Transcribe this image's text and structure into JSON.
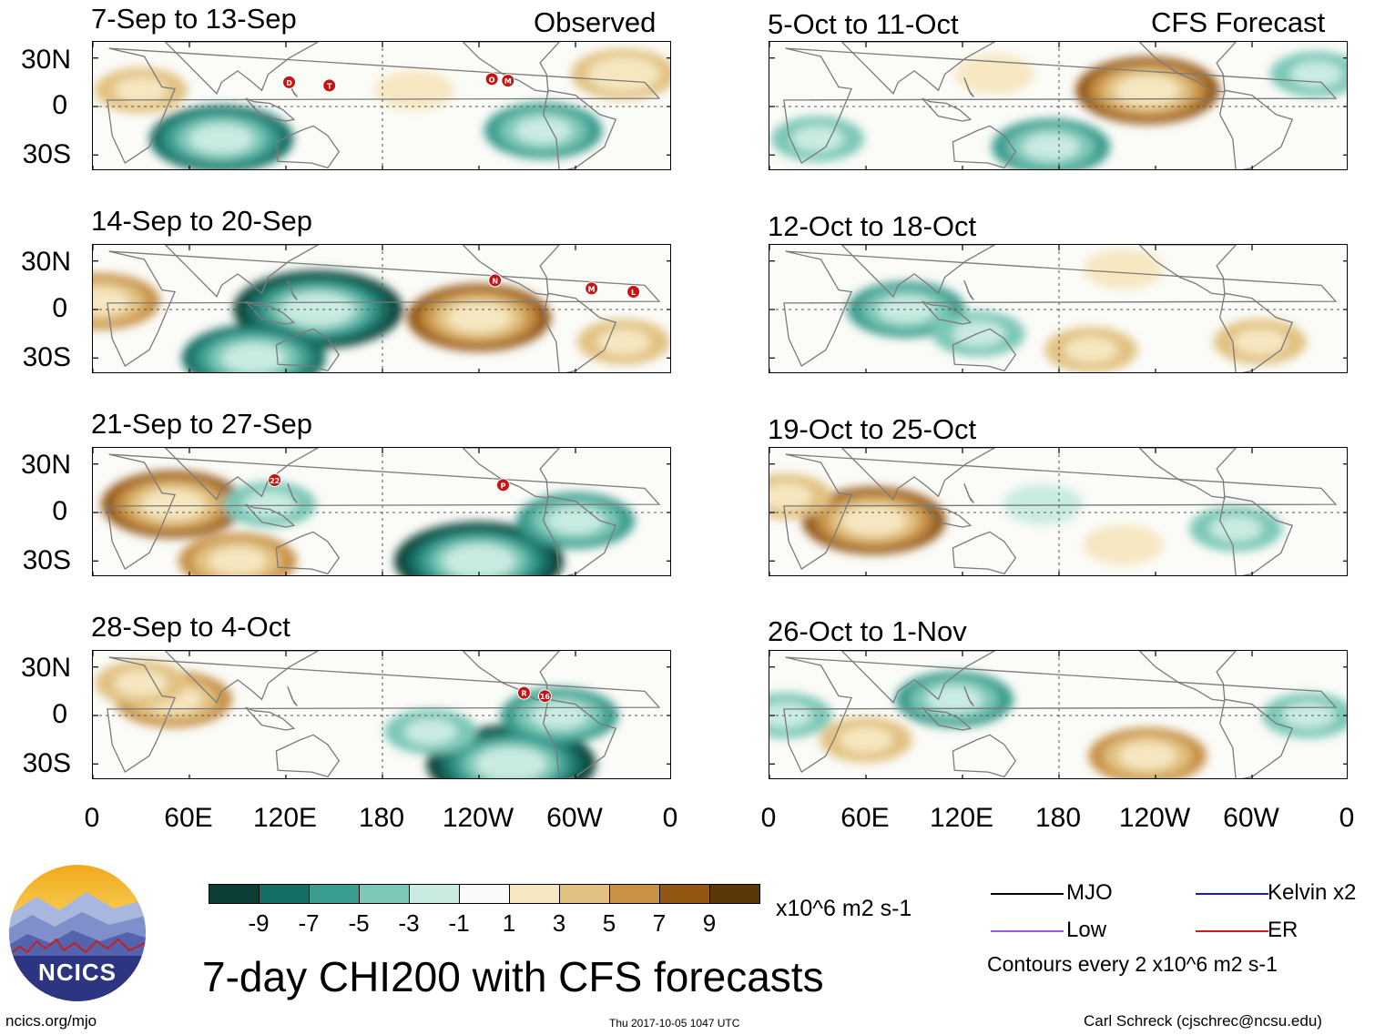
{
  "header": {
    "observed_label": "Observed",
    "forecast_label": "CFS Forecast"
  },
  "panels": [
    {
      "title": "7-Sep to 13-Sep",
      "column": "observed",
      "storms": [
        "D",
        "T",
        "O",
        "M"
      ]
    },
    {
      "title": "14-Sep to 20-Sep",
      "column": "observed",
      "storms": [
        "N",
        "M",
        "L"
      ]
    },
    {
      "title": "21-Sep to 27-Sep",
      "column": "observed",
      "storms": [
        "22",
        "P"
      ]
    },
    {
      "title": "28-Sep to 4-Oct",
      "column": "observed",
      "storms": [
        "R",
        "16"
      ]
    },
    {
      "title": "5-Oct to 11-Oct",
      "column": "forecast",
      "storms": []
    },
    {
      "title": "12-Oct to 18-Oct",
      "column": "forecast",
      "storms": []
    },
    {
      "title": "19-Oct to 25-Oct",
      "column": "forecast",
      "storms": []
    },
    {
      "title": "26-Oct to 1-Nov",
      "column": "forecast",
      "storms": []
    }
  ],
  "axes": {
    "lat_ticks": [
      "30N",
      "0",
      "30S"
    ],
    "lon_ticks": [
      "0",
      "60E",
      "120E",
      "180",
      "120W",
      "60W",
      "0"
    ]
  },
  "colorbar": {
    "colors": [
      "#0b3f36",
      "#136e63",
      "#3a9d8f",
      "#7cc8b8",
      "#c9ebe2",
      "#fafafa",
      "#f6e7c1",
      "#e2c282",
      "#c89246",
      "#935714",
      "#5b3709"
    ],
    "labels": [
      "-9",
      "-7",
      "-5",
      "-3",
      "-1",
      "1",
      "3",
      "5",
      "7",
      "9"
    ],
    "units": "x10^6 m2 s-1"
  },
  "legend": {
    "items": [
      {
        "label": "MJO",
        "color": "#000000"
      },
      {
        "label": "Kelvin x2",
        "color": "#1a1acc"
      },
      {
        "label": "Low",
        "color": "#9a5bd6"
      },
      {
        "label": "ER",
        "color": "#d11a1a"
      }
    ],
    "contours_note": "Contours every 2 x10^6 m2 s-1"
  },
  "logo": {
    "text": "NCICS"
  },
  "footer": {
    "main_title": "7-day CHI200 with CFS forecasts",
    "url": "ncics.org/mjo",
    "timestamp": "Thu 2017-10-05 1047 UTC",
    "credit": "Carl Schreck (cjschrec@ncsu.edu)"
  },
  "chart_data": {
    "type": "heatmap",
    "variable": "7-day CHI200 anomaly",
    "units": "x10^6 m2 s-1",
    "xlim": [
      0,
      360
    ],
    "ylim": [
      -40,
      40
    ],
    "lat_ticks_deg": [
      30,
      0,
      -30
    ],
    "lon_ticks_deg": [
      0,
      60,
      120,
      180,
      240,
      300,
      360
    ],
    "color_levels": [
      -9,
      -7,
      -5,
      -3,
      -1,
      1,
      3,
      5,
      7,
      9
    ],
    "panels": [
      {
        "title": "7-Sep to 13-Sep",
        "anomalies": [
          {
            "lon": 30,
            "lat": 10,
            "value": 3
          },
          {
            "lon": 80,
            "lat": -20,
            "value": -7
          },
          {
            "lon": 280,
            "lat": -15,
            "value": -5
          },
          {
            "lon": 330,
            "lat": 20,
            "value": 4
          },
          {
            "lon": 200,
            "lat": 10,
            "value": 2
          }
        ]
      },
      {
        "title": "14-Sep to 20-Sep",
        "anomalies": [
          {
            "lon": 140,
            "lat": 0,
            "value": -9
          },
          {
            "lon": 240,
            "lat": -5,
            "value": 7
          },
          {
            "lon": 5,
            "lat": 5,
            "value": 5
          },
          {
            "lon": 100,
            "lat": -30,
            "value": -7
          },
          {
            "lon": 330,
            "lat": -20,
            "value": 3
          }
        ]
      },
      {
        "title": "21-Sep to 27-Sep",
        "anomalies": [
          {
            "lon": 50,
            "lat": 5,
            "value": 7
          },
          {
            "lon": 240,
            "lat": -30,
            "value": -9
          },
          {
            "lon": 300,
            "lat": -5,
            "value": -5
          },
          {
            "lon": 90,
            "lat": -30,
            "value": 5
          },
          {
            "lon": 110,
            "lat": 5,
            "value": -3
          }
        ]
      },
      {
        "title": "28-Sep to 4-Oct",
        "anomalies": [
          {
            "lon": 260,
            "lat": -30,
            "value": -9
          },
          {
            "lon": 50,
            "lat": 10,
            "value": 5
          },
          {
            "lon": 30,
            "lat": 20,
            "value": 3
          },
          {
            "lon": 210,
            "lat": -10,
            "value": -3
          },
          {
            "lon": 290,
            "lat": 0,
            "value": -5
          }
        ]
      },
      {
        "title": "5-Oct to 11-Oct",
        "anomalies": [
          {
            "lon": 235,
            "lat": 10,
            "value": 7
          },
          {
            "lon": 175,
            "lat": -25,
            "value": -5
          },
          {
            "lon": 30,
            "lat": -20,
            "value": -3
          },
          {
            "lon": 340,
            "lat": 20,
            "value": -3
          },
          {
            "lon": 140,
            "lat": 20,
            "value": 2
          }
        ]
      },
      {
        "title": "12-Oct to 18-Oct",
        "anomalies": [
          {
            "lon": 85,
            "lat": 0,
            "value": -5
          },
          {
            "lon": 200,
            "lat": -25,
            "value": 3
          },
          {
            "lon": 305,
            "lat": -20,
            "value": 3
          },
          {
            "lon": 130,
            "lat": -15,
            "value": -3
          },
          {
            "lon": 220,
            "lat": 25,
            "value": 2
          }
        ]
      },
      {
        "title": "19-Oct to 25-Oct",
        "anomalies": [
          {
            "lon": 65,
            "lat": -5,
            "value": 7
          },
          {
            "lon": 290,
            "lat": -10,
            "value": -3
          },
          {
            "lon": 170,
            "lat": 5,
            "value": -2
          },
          {
            "lon": 220,
            "lat": -20,
            "value": 2
          },
          {
            "lon": 10,
            "lat": 10,
            "value": 3
          }
        ]
      },
      {
        "title": "26-Oct to 1-Nov",
        "anomalies": [
          {
            "lon": 235,
            "lat": -25,
            "value": 5
          },
          {
            "lon": 115,
            "lat": 10,
            "value": -5
          },
          {
            "lon": 60,
            "lat": -15,
            "value": 3
          },
          {
            "lon": 335,
            "lat": 0,
            "value": -3
          },
          {
            "lon": 10,
            "lat": 0,
            "value": -3
          }
        ]
      }
    ],
    "storm_markers": [
      {
        "panel": 0,
        "label": "D",
        "lon": 122,
        "lat": 15
      },
      {
        "panel": 0,
        "label": "T",
        "lon": 147,
        "lat": 13
      },
      {
        "panel": 0,
        "label": "O",
        "lon": 248,
        "lat": 17
      },
      {
        "panel": 0,
        "label": "M",
        "lon": 258,
        "lat": 16
      },
      {
        "panel": 1,
        "label": "N",
        "lon": 250,
        "lat": 18
      },
      {
        "panel": 1,
        "label": "M",
        "lon": 310,
        "lat": 13
      },
      {
        "panel": 1,
        "label": "L",
        "lon": 336,
        "lat": 11
      },
      {
        "panel": 2,
        "label": "22",
        "lon": 113,
        "lat": 20
      },
      {
        "panel": 2,
        "label": "P",
        "lon": 255,
        "lat": 17
      },
      {
        "panel": 3,
        "label": "R",
        "lon": 268,
        "lat": 14
      },
      {
        "panel": 3,
        "label": "16",
        "lon": 281,
        "lat": 12
      }
    ]
  }
}
